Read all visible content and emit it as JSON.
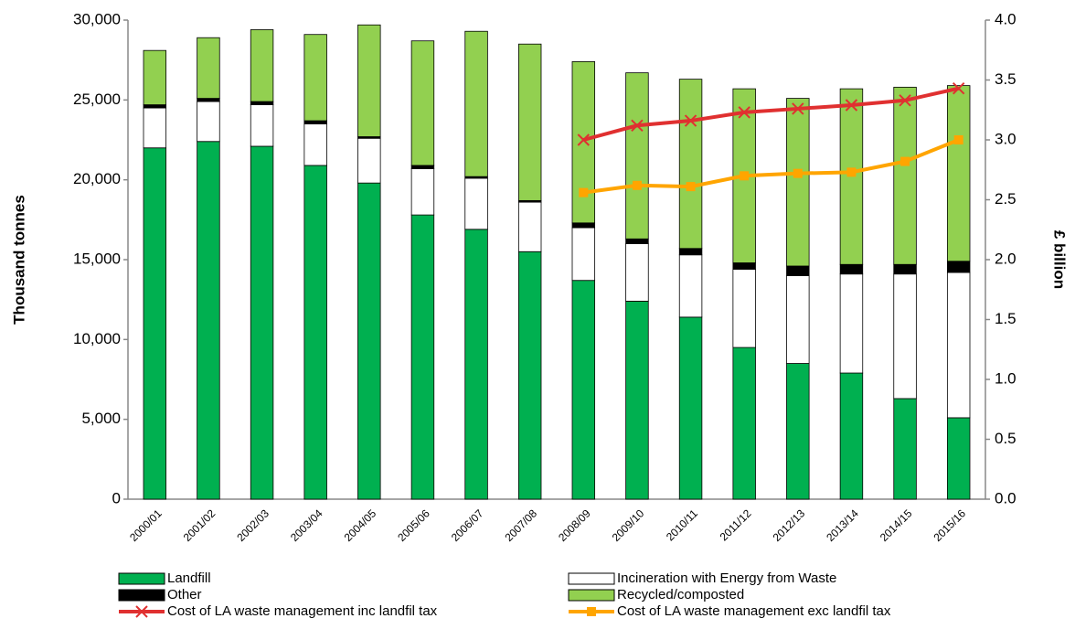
{
  "chart_data": {
    "type": "bar",
    "y_label": "Thousand tonnes",
    "y2_label": "£ billion",
    "categories": [
      "2000/01",
      "2001/02",
      "2002/03",
      "2003/04",
      "2004/05",
      "2005/06",
      "2006/07",
      "2007/08",
      "2008/09",
      "2009/10",
      "2010/11",
      "2011/12",
      "2012/13",
      "2013/14",
      "2014/15",
      "2015/16"
    ],
    "stacked": true,
    "series": [
      {
        "name": "Landfill",
        "color": "#00b050",
        "values": [
          22000,
          22400,
          22100,
          20900,
          19800,
          17800,
          16900,
          15500,
          13700,
          12400,
          11400,
          9500,
          8500,
          7900,
          6300,
          5100
        ]
      },
      {
        "name": "Incineration with Energy from Waste",
        "color": "#ffffff",
        "values": [
          2500,
          2500,
          2600,
          2600,
          2800,
          2900,
          3200,
          3100,
          3300,
          3600,
          3900,
          4900,
          5500,
          6200,
          7800,
          9100
        ]
      },
      {
        "name": "Other",
        "color": "#000000",
        "values": [
          200,
          200,
          200,
          200,
          100,
          200,
          100,
          100,
          300,
          300,
          400,
          400,
          600,
          600,
          600,
          700
        ]
      },
      {
        "name": "Recycled/composted",
        "color": "#92d050",
        "values": [
          3400,
          3800,
          4500,
          5400,
          7000,
          7800,
          9100,
          9800,
          10100,
          10400,
          10600,
          10900,
          10500,
          11000,
          11100,
          11000
        ]
      },
      {
        "name": "Cost of LA waste management inc landfil tax",
        "color": "#e03030",
        "type": "line",
        "axis": "y2",
        "marker": "x",
        "values": [
          null,
          null,
          null,
          null,
          null,
          null,
          null,
          null,
          3.0,
          3.12,
          3.16,
          3.23,
          3.26,
          3.29,
          3.33,
          3.43
        ]
      },
      {
        "name": "Cost of LA waste management exc landfil tax",
        "color": "#ffa500",
        "type": "line",
        "axis": "y2",
        "marker": "square",
        "values": [
          null,
          null,
          null,
          null,
          null,
          null,
          null,
          null,
          2.56,
          2.62,
          2.61,
          2.7,
          2.72,
          2.73,
          2.82,
          3.0
        ]
      }
    ],
    "ylim": [
      0,
      30000
    ],
    "yticks": [
      0,
      {
        "value": 5000,
        "label": "5,000"
      },
      {
        "value": 10000,
        "label": "10,000"
      },
      {
        "value": 15000,
        "label": "15,000"
      },
      {
        "value": 20000,
        "label": "20,000"
      },
      {
        "value": 25000,
        "label": "25,000"
      },
      {
        "value": 30000,
        "label": "30,000"
      }
    ],
    "y2lim": [
      0,
      4
    ],
    "y2ticks": [
      {
        "value": 0,
        "label": "0.0"
      },
      0.5,
      {
        "value": 1,
        "label": "1.0"
      },
      1.5,
      {
        "value": 2,
        "label": "2.0"
      },
      2.5,
      {
        "value": 3,
        "label": "3.0"
      },
      3.5,
      {
        "value": 4,
        "label": "4.0"
      }
    ],
    "grid": false,
    "legend": "bottom"
  }
}
